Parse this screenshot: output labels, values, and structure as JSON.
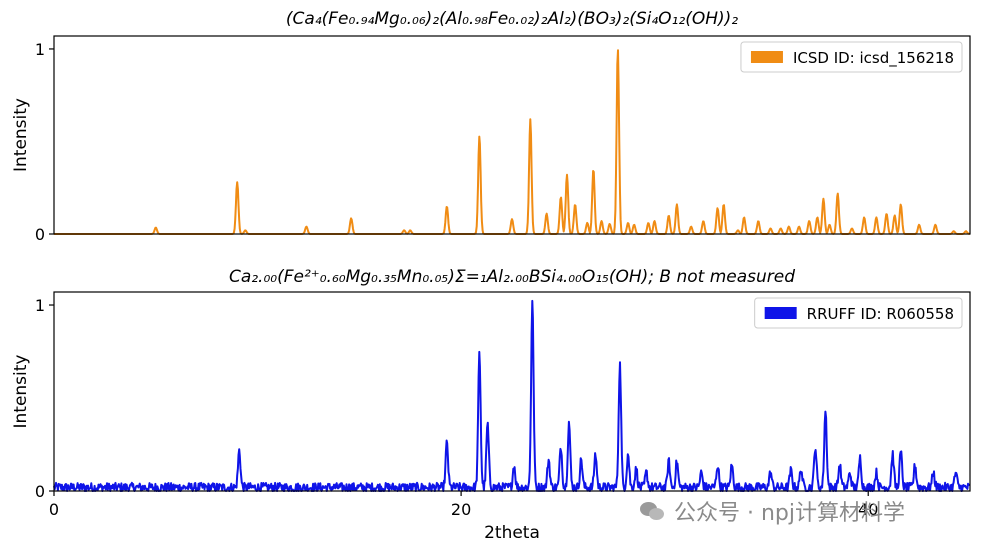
{
  "chart_data": [
    {
      "type": "line",
      "title": "(Ca₄(Fe₀.₉₄Mg₀.₀₆)₂(Al₀.₉₈Fe₀.₀₂)₂Al₂)(BO₃)₂(Si₄O₁₂(OH))₂",
      "xlabel": "",
      "ylabel": "Intensity",
      "xlim": [
        0,
        45
      ],
      "ylim": [
        0,
        1.07
      ],
      "xticks": [],
      "yticks": [
        0,
        1
      ],
      "legend": {
        "placement": "top-right",
        "entries": [
          "ICSD ID: icsd_156218"
        ]
      },
      "series": [
        {
          "name": "ICSD ID: icsd_156218",
          "color": "#f08c14",
          "noise": 0,
          "peaks": [
            [
              5.0,
              0.035
            ],
            [
              9.0,
              0.28
            ],
            [
              9.4,
              0.02
            ],
            [
              12.4,
              0.04
            ],
            [
              14.6,
              0.085
            ],
            [
              17.2,
              0.02
            ],
            [
              17.5,
              0.02
            ],
            [
              19.3,
              0.15
            ],
            [
              20.9,
              0.53
            ],
            [
              22.5,
              0.08
            ],
            [
              23.4,
              0.62
            ],
            [
              24.2,
              0.11
            ],
            [
              24.9,
              0.2
            ],
            [
              25.2,
              0.32
            ],
            [
              25.6,
              0.16
            ],
            [
              26.2,
              0.06
            ],
            [
              26.5,
              0.35
            ],
            [
              26.9,
              0.07
            ],
            [
              27.3,
              0.055
            ],
            [
              27.7,
              1.0
            ],
            [
              28.2,
              0.06
            ],
            [
              28.5,
              0.05
            ],
            [
              29.2,
              0.06
            ],
            [
              29.5,
              0.07
            ],
            [
              30.2,
              0.1
            ],
            [
              30.6,
              0.16
            ],
            [
              31.3,
              0.04
            ],
            [
              31.9,
              0.07
            ],
            [
              32.6,
              0.14
            ],
            [
              32.9,
              0.16
            ],
            [
              33.6,
              0.02
            ],
            [
              33.9,
              0.09
            ],
            [
              34.6,
              0.07
            ],
            [
              35.2,
              0.03
            ],
            [
              35.7,
              0.03
            ],
            [
              36.1,
              0.04
            ],
            [
              36.6,
              0.04
            ],
            [
              37.1,
              0.07
            ],
            [
              37.5,
              0.09
            ],
            [
              37.8,
              0.19
            ],
            [
              38.1,
              0.05
            ],
            [
              38.5,
              0.22
            ],
            [
              39.2,
              0.03
            ],
            [
              39.8,
              0.09
            ],
            [
              40.4,
              0.09
            ],
            [
              40.9,
              0.11
            ],
            [
              41.3,
              0.1
            ],
            [
              41.6,
              0.16
            ],
            [
              42.5,
              0.05
            ],
            [
              43.3,
              0.05
            ],
            [
              44.2,
              0.015
            ],
            [
              44.8,
              0.015
            ]
          ]
        }
      ]
    },
    {
      "type": "line",
      "title": "Ca₂.₀₀(Fe²⁺₀.₆₀Mg₀.₃₅Mn₀.₀₅)Σ=₁Al₂.₀₀BSi₄.₀₀O₁₅(OH); B not measured",
      "xlabel": "2theta",
      "ylabel": "Intensity",
      "xlim": [
        0,
        45
      ],
      "ylim": [
        0,
        1.07
      ],
      "xticks": [
        0,
        20,
        40
      ],
      "yticks": [
        0,
        1
      ],
      "legend": {
        "placement": "top-right",
        "entries": [
          "RRUFF ID: R060558"
        ]
      },
      "series": [
        {
          "name": "RRUFF ID: R060558",
          "color": "#0f14e8",
          "noise": 0.055,
          "peaks": [
            [
              9.1,
              0.2
            ],
            [
              19.3,
              0.24
            ],
            [
              20.9,
              0.72
            ],
            [
              21.3,
              0.34
            ],
            [
              22.6,
              0.12
            ],
            [
              23.5,
              1.0
            ],
            [
              24.3,
              0.15
            ],
            [
              24.9,
              0.22
            ],
            [
              25.3,
              0.35
            ],
            [
              25.9,
              0.15
            ],
            [
              26.6,
              0.18
            ],
            [
              27.8,
              0.66
            ],
            [
              28.2,
              0.18
            ],
            [
              28.6,
              0.1
            ],
            [
              29.1,
              0.08
            ],
            [
              30.2,
              0.14
            ],
            [
              30.6,
              0.14
            ],
            [
              31.8,
              0.08
            ],
            [
              32.6,
              0.12
            ],
            [
              33.3,
              0.12
            ],
            [
              35.2,
              0.08
            ],
            [
              36.2,
              0.09
            ],
            [
              36.7,
              0.1
            ],
            [
              37.4,
              0.22
            ],
            [
              37.9,
              0.41
            ],
            [
              38.6,
              0.12
            ],
            [
              39.1,
              0.08
            ],
            [
              39.6,
              0.16
            ],
            [
              40.4,
              0.08
            ],
            [
              41.2,
              0.18
            ],
            [
              41.6,
              0.19
            ],
            [
              42.3,
              0.12
            ],
            [
              43.2,
              0.08
            ],
            [
              44.3,
              0.08
            ]
          ]
        }
      ]
    }
  ],
  "watermark": {
    "text": "公众号 · npj计算材料学"
  }
}
